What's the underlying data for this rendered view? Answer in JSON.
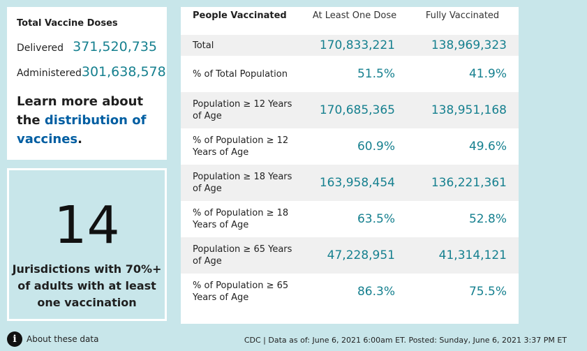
{
  "doses": {
    "title": "Total Vaccine Doses",
    "delivered_label": "Delivered",
    "delivered_value": "371,520,735",
    "administered_label": "Administered",
    "administered_value": "301,638,578",
    "learn_prefix": "Learn more about the ",
    "learn_link": "distribution of vaccines",
    "learn_suffix": "."
  },
  "jurisdictions": {
    "number": "14",
    "text": "Jurisdictions with 70%+ of adults with at least one vaccination"
  },
  "table": {
    "headers": [
      "People Vaccinated",
      "At Least One Dose",
      "Fully Vaccinated"
    ],
    "rows": [
      {
        "label": "Total",
        "one_dose": "170,833,221",
        "fully": "138,969,323"
      },
      {
        "label": "% of Total Population",
        "one_dose": "51.5%",
        "fully": "41.9%"
      },
      {
        "label": "Population ≥ 12 Years of Age",
        "one_dose": "170,685,365",
        "fully": "138,951,168"
      },
      {
        "label": "% of Population ≥ 12 Years of Age",
        "one_dose": "60.9%",
        "fully": "49.6%"
      },
      {
        "label": "Population ≥ 18 Years of Age",
        "one_dose": "163,958,454",
        "fully": "136,221,361"
      },
      {
        "label": "% of Population ≥ 18 Years of Age",
        "one_dose": "63.5%",
        "fully": "52.8%"
      },
      {
        "label": "Population ≥ 65 Years of Age",
        "one_dose": "47,228,951",
        "fully": "41,314,121"
      },
      {
        "label": "% of Population ≥ 65 Years of Age",
        "one_dose": "86.3%",
        "fully": "75.5%"
      }
    ]
  },
  "footer": {
    "info_icon": "i",
    "about_label": "About these data",
    "source": "CDC | Data as of: June 6, 2021 6:00am ET. Posted: Sunday, June 6, 2021 3:37 PM ET"
  },
  "colors": {
    "background": "#c8e6ea",
    "value_teal": "#16808f",
    "link_blue": "#005ea2"
  }
}
